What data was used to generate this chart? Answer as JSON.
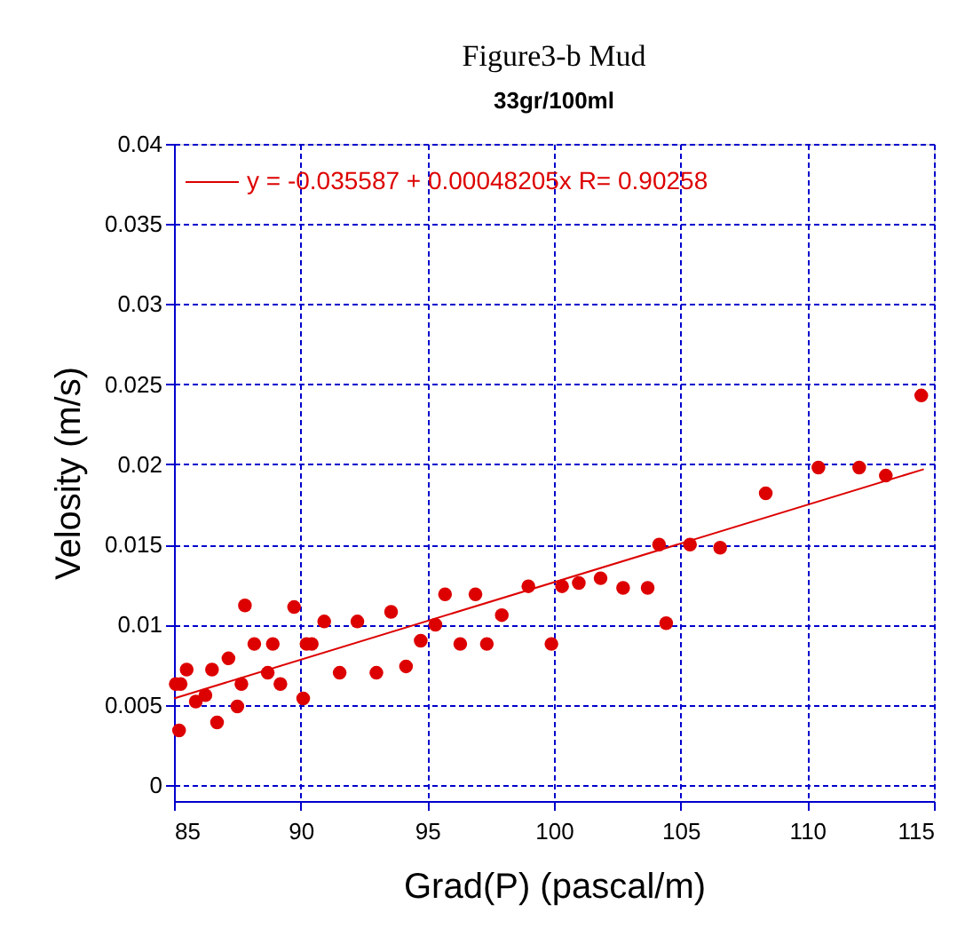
{
  "chart_data": {
    "type": "scatter",
    "title": "Figure3-b Mud",
    "subtitle": "33gr/100ml",
    "xlabel": "Grad(P) (pascal/m)",
    "ylabel": "Velosity (m/s)",
    "xlim": [
      85,
      115
    ],
    "xticks": [
      85,
      90,
      95,
      100,
      105,
      110,
      115
    ],
    "ylim": [
      -0.001,
      0.04
    ],
    "yticks": [
      0,
      0.005,
      0.01,
      0.015,
      0.02,
      0.025,
      0.03,
      0.035,
      0.04
    ],
    "grid": true,
    "legend": "top left",
    "marker": "circle",
    "series": [
      {
        "color": "#dd0000",
        "x": [
          85.07,
          85.26,
          85.5,
          85.2,
          85.86,
          86.24,
          86.5,
          86.7,
          87.15,
          87.5,
          87.66,
          87.8,
          88.17,
          88.7,
          88.9,
          89.2,
          89.74,
          90.1,
          90.23,
          90.44,
          90.93,
          91.54,
          92.24,
          92.99,
          93.57,
          94.16,
          94.74,
          95.32,
          95.7,
          96.3,
          96.9,
          97.35,
          97.94,
          98.99,
          99.9,
          100.32,
          100.98,
          101.84,
          102.73,
          103.7,
          104.15,
          104.43,
          105.37,
          106.56,
          108.36,
          110.44,
          112.05,
          113.1,
          114.5
        ],
        "values": [
          0.0063,
          0.0063,
          0.0072,
          0.0034,
          0.0052,
          0.0056,
          0.0072,
          0.0039,
          0.0079,
          0.0049,
          0.0063,
          0.0112,
          0.0088,
          0.007,
          0.0088,
          0.0063,
          0.0111,
          0.0054,
          0.0088,
          0.0088,
          0.0102,
          0.007,
          0.0102,
          0.007,
          0.0108,
          0.0074,
          0.009,
          0.01,
          0.0119,
          0.0088,
          0.0119,
          0.0088,
          0.0106,
          0.0124,
          0.0088,
          0.0124,
          0.0126,
          0.0129,
          0.0123,
          0.0123,
          0.015,
          0.0101,
          0.015,
          0.0148,
          0.0182,
          0.0198,
          0.0198,
          0.0193,
          0.0243
        ]
      },
      {
        "type": "line",
        "marker": "none",
        "name": "y = -0.035587 + 0.00048205x   R= 0.90258",
        "color": "#dd0000",
        "x": [
          85,
          114.6
        ],
        "values": [
          0.0054,
          0.0197
        ]
      }
    ]
  }
}
